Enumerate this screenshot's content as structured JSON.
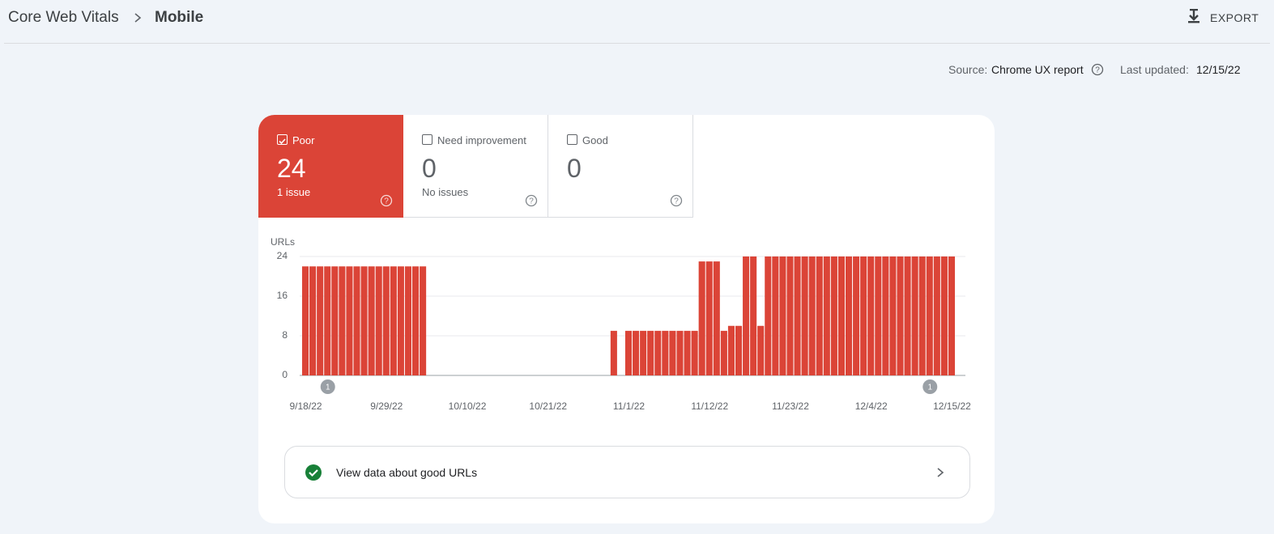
{
  "header": {
    "breadcrumb": [
      "Core Web Vitals",
      "Mobile"
    ],
    "export": "EXPORT"
  },
  "source": {
    "label": "Source:",
    "value": "Chrome UX report"
  },
  "updated": {
    "label": "Last updated:",
    "value": "12/15/22"
  },
  "tabs": [
    {
      "label": "Poor",
      "count": 24,
      "note": "1 issue",
      "checked": true
    },
    {
      "label": "Need improvement",
      "count": 0,
      "note": "No issues",
      "checked": false
    },
    {
      "label": "Good",
      "count": 0,
      "checked": false
    }
  ],
  "chart_data": {
    "type": "bar",
    "y_label": "URLs",
    "color": "#db4437",
    "grid": true,
    "ylim": [
      0,
      24
    ],
    "yticks": [
      0,
      8,
      16,
      24
    ],
    "categories": [
      "9/18/22",
      null,
      null,
      null,
      null,
      null,
      null,
      null,
      null,
      null,
      null,
      "9/29/22",
      null,
      null,
      null,
      null,
      null,
      null,
      null,
      null,
      null,
      null,
      "10/10/22",
      null,
      null,
      null,
      null,
      null,
      null,
      null,
      null,
      null,
      null,
      "10/21/22",
      null,
      null,
      null,
      null,
      null,
      null,
      null,
      null,
      null,
      null,
      "11/1/22",
      null,
      null,
      null,
      null,
      null,
      null,
      null,
      null,
      null,
      null,
      "11/12/22",
      null,
      null,
      null,
      null,
      null,
      null,
      null,
      null,
      null,
      null,
      "11/23/22",
      null,
      null,
      null,
      null,
      null,
      null,
      null,
      null,
      null,
      null,
      "12/4/22",
      null,
      null,
      null,
      null,
      null,
      null,
      null,
      null,
      null,
      null,
      "12/15/22"
    ],
    "values": [
      22,
      22,
      22,
      22,
      22,
      22,
      22,
      22,
      22,
      22,
      22,
      22,
      22,
      22,
      22,
      22,
      22,
      0,
      0,
      0,
      0,
      0,
      0,
      0,
      0,
      0,
      0,
      0,
      0,
      0,
      0,
      0,
      0,
      0,
      0,
      0,
      0,
      0,
      0,
      0,
      0,
      0,
      9,
      0,
      9,
      9,
      9,
      9,
      9,
      9,
      9,
      9,
      9,
      9,
      23,
      23,
      23,
      9,
      10,
      10,
      24,
      24,
      10,
      24,
      24,
      24,
      24,
      24,
      24,
      24,
      24,
      24,
      24,
      24,
      24,
      24,
      24,
      24,
      24,
      24,
      24,
      24,
      24,
      24,
      24,
      24,
      24,
      24,
      24
    ],
    "annotations": [
      {
        "at": 3,
        "label": "1"
      },
      {
        "at": 85,
        "label": "1"
      }
    ]
  },
  "footer_link": "View data about good URLs"
}
